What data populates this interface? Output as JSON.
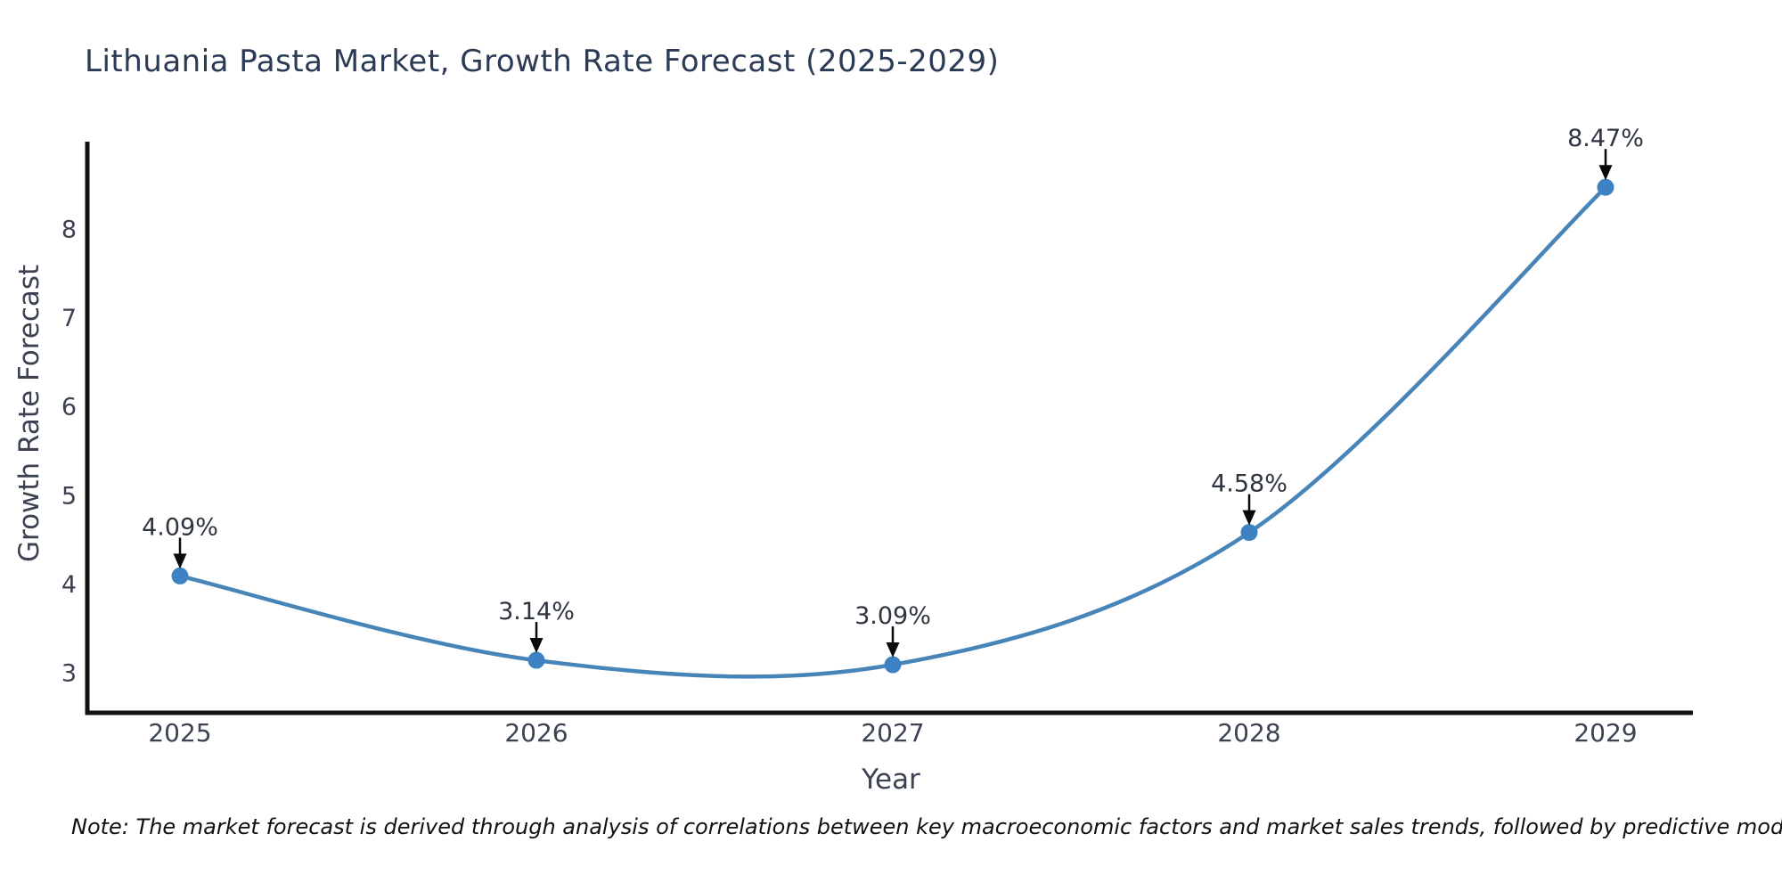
{
  "note": "Note: The market forecast is derived through analysis of correlations between key macroeconomic factors and market sales trends, followed by predictive modeling to project future sales.",
  "chart_data": {
    "type": "line",
    "title": "Lithuania Pasta Market, Growth Rate Forecast (2025-2029)",
    "xlabel": "Year",
    "ylabel": "Growth Rate Forecast",
    "x": [
      2025,
      2026,
      2027,
      2028,
      2029
    ],
    "values": [
      4.09,
      3.14,
      3.09,
      4.58,
      8.47
    ],
    "point_labels": [
      "4.09%",
      "3.14%",
      "3.09%",
      "4.58%",
      "8.47%"
    ],
    "yticks": [
      3,
      4,
      5,
      6,
      7,
      8
    ],
    "ylim": [
      2.55,
      9.0
    ],
    "grid": false,
    "legend": null,
    "line_shape": "spline",
    "colors": {
      "line": "#4784b8",
      "marker": "#3d83c3",
      "axis": "#111111",
      "tick_label": "#3b4251",
      "annotation_text": "#2e3540",
      "annotation_arrow": "#0a0a0a",
      "title": "#2b3a55"
    }
  }
}
